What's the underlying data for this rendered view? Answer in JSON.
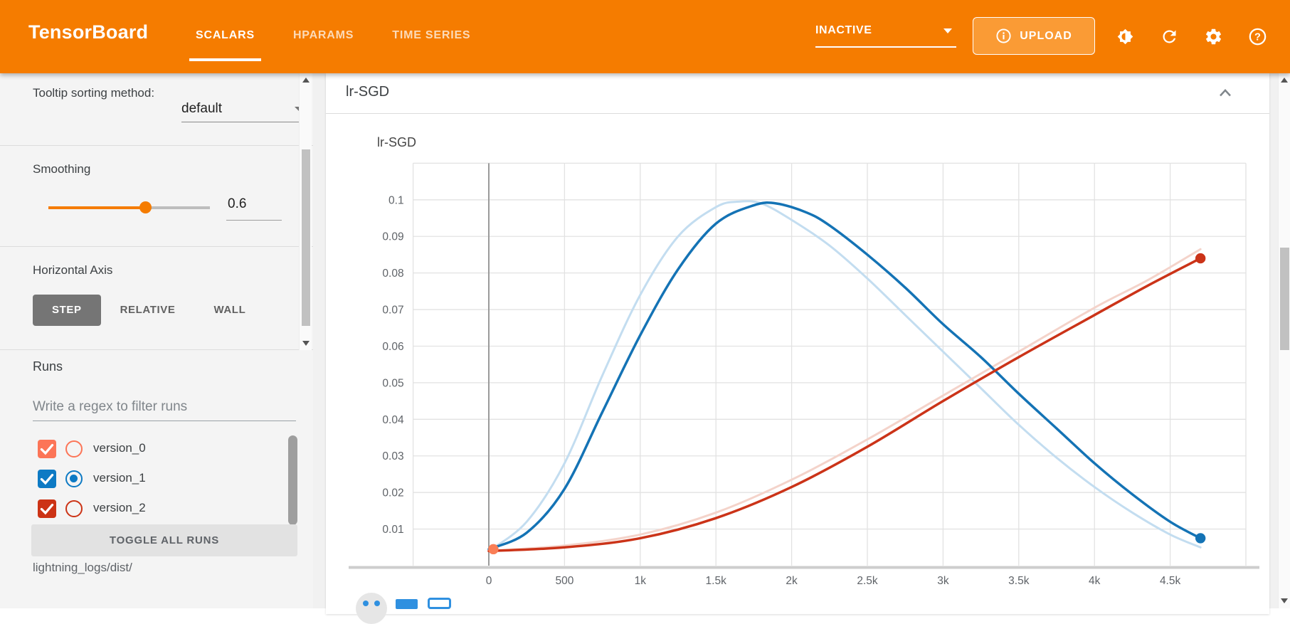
{
  "header": {
    "title": "TensorBoard",
    "tabs": [
      {
        "label": "SCALARS",
        "active": true
      },
      {
        "label": "HPARAMS",
        "active": false
      },
      {
        "label": "TIME SERIES",
        "active": false
      }
    ],
    "environment": {
      "value": "INACTIVE"
    },
    "upload": {
      "label": "UPLOAD",
      "icon": "info-icon"
    },
    "action_icons": [
      "contrast-icon",
      "refresh-icon",
      "settings-icon",
      "help-icon"
    ],
    "colors": {
      "header_bg": "#f57c00",
      "upload_bg": "#fa9b35"
    }
  },
  "sidebar": {
    "tooltip_sorting": {
      "label": "Tooltip sorting method:",
      "value": "default"
    },
    "smoothing": {
      "label": "Smoothing",
      "value": "0.6",
      "percent": 60
    },
    "horizontal_axis": {
      "label": "Horizontal Axis",
      "options": [
        "STEP",
        "RELATIVE",
        "WALL"
      ],
      "selected": "STEP"
    },
    "runs": {
      "label": "Runs",
      "filter_placeholder": "Write a regex to filter runs",
      "items": [
        {
          "name": "version_0",
          "checked": true,
          "radio_selected": false,
          "color": "#fc7557"
        },
        {
          "name": "version_1",
          "checked": true,
          "radio_selected": true,
          "color": "#0d7ac4"
        },
        {
          "name": "version_2",
          "checked": true,
          "radio_selected": false,
          "color": "#cc3315"
        }
      ],
      "toggle_all_label": "TOGGLE ALL RUNS",
      "log_dir": "lightning_logs/dist/"
    }
  },
  "main": {
    "group_title": "lr-SGD",
    "collapse_icon": "chevron-up-icon"
  },
  "chart_data": {
    "type": "line",
    "title": "lr-SGD",
    "xlabel": "",
    "ylabel": "",
    "grid": true,
    "legend_position": "none",
    "xlim": [
      -500,
      5000
    ],
    "ylim": [
      0,
      0.11
    ],
    "x_ticks": [
      "0",
      "500",
      "1k",
      "1.5k",
      "2k",
      "2.5k",
      "3k",
      "3.5k",
      "4k",
      "4.5k"
    ],
    "x_tick_values": [
      0,
      500,
      1000,
      1500,
      2000,
      2500,
      3000,
      3500,
      4000,
      4500
    ],
    "y_ticks": [
      "0.01",
      "0.02",
      "0.03",
      "0.04",
      "0.05",
      "0.06",
      "0.07",
      "0.08",
      "0.09",
      "0.1"
    ],
    "y_tick_values": [
      0.01,
      0.02,
      0.03,
      0.04,
      0.05,
      0.06,
      0.07,
      0.08,
      0.09,
      0.1
    ],
    "x_grid_extra": [
      -500,
      5000
    ],
    "y_grid_extra": [
      0.11
    ],
    "zero_line_x": 0,
    "series": [
      {
        "name": "version_1 (raw)",
        "run": "version_1",
        "kind": "raw",
        "color": "#c3ddf0",
        "width": 3,
        "end_dot": false,
        "points": [
          [
            0,
            0.004
          ],
          [
            250,
            0.012
          ],
          [
            500,
            0.028
          ],
          [
            750,
            0.052
          ],
          [
            1000,
            0.074
          ],
          [
            1250,
            0.09
          ],
          [
            1500,
            0.098
          ],
          [
            1650,
            0.0995
          ],
          [
            1800,
            0.099
          ],
          [
            2000,
            0.0945
          ],
          [
            2250,
            0.0875
          ],
          [
            2500,
            0.0785
          ],
          [
            2750,
            0.0685
          ],
          [
            3000,
            0.0585
          ],
          [
            3250,
            0.0485
          ],
          [
            3500,
            0.0385
          ],
          [
            3750,
            0.0295
          ],
          [
            4000,
            0.0215
          ],
          [
            4250,
            0.0145
          ],
          [
            4500,
            0.0085
          ],
          [
            4700,
            0.005
          ]
        ]
      },
      {
        "name": "version_2 (raw)",
        "run": "version_2",
        "kind": "raw",
        "color": "#f4d3ca",
        "width": 3,
        "end_dot": false,
        "points": [
          [
            0,
            0.004
          ],
          [
            500,
            0.0055
          ],
          [
            1000,
            0.0085
          ],
          [
            1500,
            0.0145
          ],
          [
            2000,
            0.0235
          ],
          [
            2500,
            0.0345
          ],
          [
            3000,
            0.0465
          ],
          [
            3500,
            0.0585
          ],
          [
            4000,
            0.0705
          ],
          [
            4350,
            0.078
          ],
          [
            4700,
            0.0865
          ]
        ]
      },
      {
        "name": "version_1 (smoothed)",
        "run": "version_1",
        "kind": "smoothed",
        "color": "#1473b5",
        "width": 3.5,
        "end_dot": true,
        "points": [
          [
            0,
            0.0045
          ],
          [
            250,
            0.009
          ],
          [
            500,
            0.021
          ],
          [
            750,
            0.042
          ],
          [
            1000,
            0.063
          ],
          [
            1250,
            0.081
          ],
          [
            1500,
            0.0935
          ],
          [
            1750,
            0.0985
          ],
          [
            1900,
            0.099
          ],
          [
            2100,
            0.0965
          ],
          [
            2250,
            0.093
          ],
          [
            2500,
            0.085
          ],
          [
            2750,
            0.076
          ],
          [
            3000,
            0.066
          ],
          [
            3250,
            0.057
          ],
          [
            3500,
            0.047
          ],
          [
            3750,
            0.0375
          ],
          [
            4000,
            0.028
          ],
          [
            4250,
            0.0195
          ],
          [
            4500,
            0.012
          ],
          [
            4700,
            0.0075
          ]
        ]
      },
      {
        "name": "version_2 (smoothed)",
        "run": "version_2",
        "kind": "smoothed",
        "color": "#cb3318",
        "width": 3.5,
        "end_dot": true,
        "points": [
          [
            0,
            0.004
          ],
          [
            500,
            0.005
          ],
          [
            1000,
            0.0075
          ],
          [
            1500,
            0.013
          ],
          [
            2000,
            0.0215
          ],
          [
            2500,
            0.0325
          ],
          [
            3000,
            0.045
          ],
          [
            3500,
            0.057
          ],
          [
            4000,
            0.0685
          ],
          [
            4350,
            0.0765
          ],
          [
            4700,
            0.084
          ]
        ]
      },
      {
        "name": "version_0",
        "run": "version_0",
        "kind": "smoothed",
        "color": "#fa7e56",
        "width": 3.5,
        "end_dot": true,
        "points": [
          [
            30,
            0.0045
          ]
        ]
      }
    ]
  }
}
